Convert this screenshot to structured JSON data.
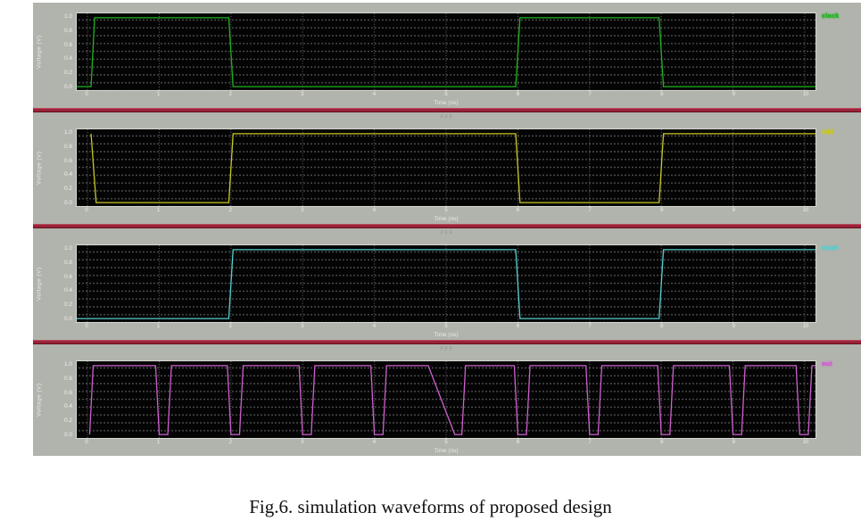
{
  "figure": {
    "caption": "Fig.6. simulation waveforms of proposed design"
  },
  "window": {
    "background": "#b1b3ad",
    "separator_color": "#9c2238",
    "separator_label": "FFF"
  },
  "axes": {
    "x_label": "Time (ns)",
    "y_label": "Voltage (V)"
  },
  "chart_data": [
    {
      "type": "line",
      "title": "",
      "xlabel": "Time (ns)",
      "ylabel": "Voltage (V)",
      "xlim": [
        0,
        10
      ],
      "ylim": [
        0,
        1
      ],
      "x_ticks": [
        0,
        1,
        2,
        3,
        4,
        5,
        6,
        7,
        8,
        9,
        10
      ],
      "y_ticks": [
        1.0,
        0.8,
        0.6,
        0.4,
        0.2,
        0.0
      ],
      "grid": "dotted",
      "legend_position": "top-right",
      "series": [
        {
          "name": "clock",
          "color": "#1db31d",
          "points": [
            [
              -0.15,
              0
            ],
            [
              0.05,
              0
            ],
            [
              0.1,
              1
            ],
            [
              1.97,
              1
            ],
            [
              2.03,
              0
            ],
            [
              5.97,
              0
            ],
            [
              6.03,
              1
            ],
            [
              7.97,
              1
            ],
            [
              8.03,
              0
            ],
            [
              10.15,
              0
            ]
          ]
        }
      ]
    },
    {
      "type": "line",
      "title": "",
      "xlabel": "Time (ns)",
      "ylabel": "Voltage (V)",
      "xlim": [
        0,
        10
      ],
      "ylim": [
        0,
        1
      ],
      "x_ticks": [
        0,
        1,
        2,
        3,
        4,
        5,
        6,
        7,
        8,
        9,
        10
      ],
      "y_ticks": [
        1.0,
        0.8,
        0.6,
        0.4,
        0.2,
        0.0
      ],
      "grid": "dotted",
      "legend_position": "top-right",
      "series": [
        {
          "name": "vdd",
          "color": "#c8c824",
          "points": [
            [
              0.05,
              1
            ],
            [
              0.12,
              0
            ],
            [
              1.97,
              0
            ],
            [
              2.03,
              1
            ],
            [
              5.97,
              1
            ],
            [
              6.03,
              0
            ],
            [
              7.97,
              0
            ],
            [
              8.03,
              1
            ],
            [
              10.15,
              1
            ]
          ]
        }
      ]
    },
    {
      "type": "line",
      "title": "",
      "xlabel": "Time (ns)",
      "ylabel": "Voltage (V)",
      "xlim": [
        0,
        10
      ],
      "ylim": [
        0,
        1
      ],
      "x_ticks": [
        0,
        1,
        2,
        3,
        4,
        5,
        6,
        7,
        8,
        9,
        10
      ],
      "y_ticks": [
        1.0,
        0.8,
        0.6,
        0.4,
        0.2,
        0.0
      ],
      "grid": "dotted",
      "legend_position": "top-right",
      "series": [
        {
          "name": "reset",
          "color": "#53cfcf",
          "points": [
            [
              -0.15,
              0
            ],
            [
              1.97,
              0
            ],
            [
              2.03,
              1
            ],
            [
              5.97,
              1
            ],
            [
              6.03,
              0
            ],
            [
              7.97,
              0
            ],
            [
              8.03,
              1
            ],
            [
              10.15,
              1
            ]
          ]
        }
      ]
    },
    {
      "type": "line",
      "title": "",
      "xlabel": "Time (ns)",
      "ylabel": "Voltage (V)",
      "xlim": [
        0,
        10
      ],
      "ylim": [
        0,
        1
      ],
      "x_ticks": [
        0,
        1,
        2,
        3,
        4,
        5,
        6,
        7,
        8,
        9,
        10
      ],
      "y_ticks": [
        1.0,
        0.8,
        0.6,
        0.4,
        0.2,
        0.0
      ],
      "grid": "dotted",
      "legend_position": "top-right",
      "series": [
        {
          "name": "out",
          "color": "#cf5fcf",
          "points": [
            [
              0.03,
              0
            ],
            [
              0.08,
              1
            ],
            [
              0.95,
              1
            ],
            [
              1.0,
              0
            ],
            [
              1.12,
              0
            ],
            [
              1.17,
              1
            ],
            [
              1.95,
              1
            ],
            [
              2.0,
              0
            ],
            [
              2.12,
              0
            ],
            [
              2.17,
              1
            ],
            [
              2.95,
              1
            ],
            [
              3.0,
              0
            ],
            [
              3.12,
              0
            ],
            [
              3.17,
              1
            ],
            [
              3.95,
              1
            ],
            [
              4.0,
              0
            ],
            [
              4.12,
              0
            ],
            [
              4.17,
              1
            ],
            [
              4.75,
              1
            ],
            [
              5.12,
              0
            ],
            [
              5.22,
              0
            ],
            [
              5.27,
              1
            ],
            [
              5.95,
              1
            ],
            [
              6.0,
              0
            ],
            [
              6.12,
              0
            ],
            [
              6.17,
              1
            ],
            [
              6.95,
              1
            ],
            [
              7.0,
              0
            ],
            [
              7.12,
              0
            ],
            [
              7.17,
              1
            ],
            [
              7.95,
              1
            ],
            [
              8.0,
              0
            ],
            [
              8.12,
              0
            ],
            [
              8.17,
              1
            ],
            [
              8.95,
              1
            ],
            [
              9.0,
              0
            ],
            [
              9.12,
              0
            ],
            [
              9.17,
              1
            ],
            [
              9.88,
              1
            ],
            [
              9.93,
              0
            ],
            [
              10.05,
              0
            ],
            [
              10.1,
              1
            ],
            [
              10.15,
              1
            ]
          ]
        }
      ]
    }
  ]
}
